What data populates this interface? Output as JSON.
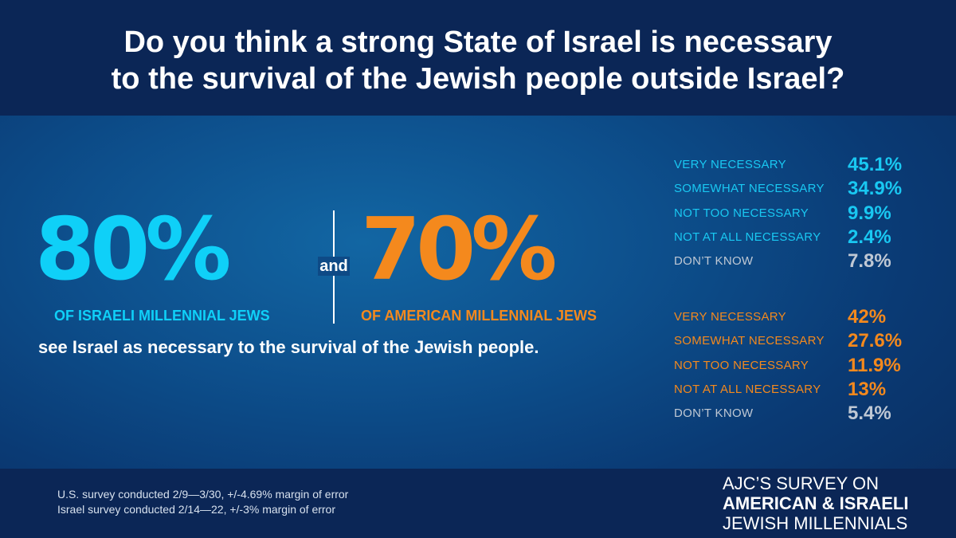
{
  "header": {
    "title_line1": "Do you think a strong State of Israel is necessary",
    "title_line2": "to the survival of the Jewish people outside Israel?"
  },
  "highlight": {
    "israel_value": "80%",
    "israel_label": "OF ISRAELI MILLENNIAL JEWS",
    "conjunction": "and",
    "us_value": "70%",
    "us_label": "OF AMERICAN MILLENNIAL JEWS",
    "tagline": "see Israel as necessary to the survival of the Jewish people."
  },
  "israel_breakdown": [
    {
      "label": "VERY NECESSARY",
      "value": "45.1%"
    },
    {
      "label": "SOMEWHAT NECESSARY",
      "value": "34.9%"
    },
    {
      "label": "NOT TOO NECESSARY",
      "value": "9.9%"
    },
    {
      "label": "NOT AT ALL NECESSARY",
      "value": "2.4%"
    },
    {
      "label": "DON’T KNOW",
      "value": "7.8%"
    }
  ],
  "us_breakdown": [
    {
      "label": "VERY NECESSARY",
      "value": "42%"
    },
    {
      "label": "SOMEWHAT NECESSARY",
      "value": "27.6%"
    },
    {
      "label": "NOT TOO NECESSARY",
      "value": "11.9%"
    },
    {
      "label": "NOT AT ALL NECESSARY",
      "value": "13%"
    },
    {
      "label": "DON’T KNOW",
      "value": "5.4%"
    }
  ],
  "footer": {
    "note_us": "U.S. survey conducted 2/9—3/30, +/-4.69% margin of error",
    "note_israel": "Israel survey conducted 2/14—22, +/-3% margin of error",
    "brand_line1": "AJC’S SURVEY ON",
    "brand_line2": "AMERICAN & ISRAELI",
    "brand_line3": "JEWISH MILLENNIALS"
  },
  "colors": {
    "israel_accent": "#0fd0f8",
    "us_accent": "#f4891d",
    "background": "#0d4f8c",
    "bar": "#0b2656"
  }
}
